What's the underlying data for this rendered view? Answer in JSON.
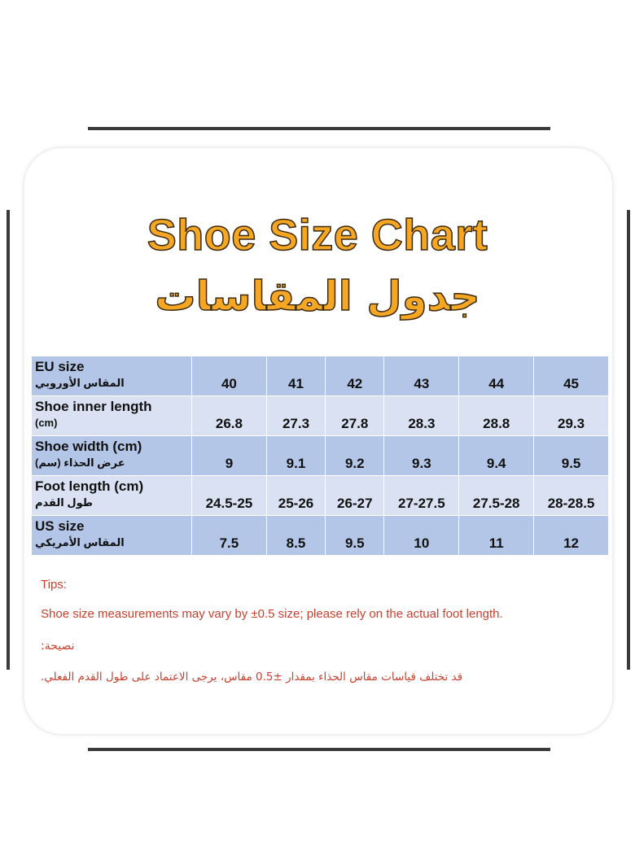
{
  "header": {
    "title": "Shoe Size Chart",
    "title_ar": "جدول المقاسات"
  },
  "table": {
    "rows": [
      {
        "label": [
          "EU size",
          "المقاس الأوروبي"
        ],
        "values": [
          "40",
          "41",
          "42",
          "43",
          "44",
          "45"
        ]
      },
      {
        "label": [
          "Shoe inner length",
          "(cm)"
        ],
        "values": [
          "26.8",
          "27.3",
          "27.8",
          "28.3",
          "28.8",
          "29.3"
        ]
      },
      {
        "label": [
          "Shoe width (cm)",
          "عرض الحذاء (سم)"
        ],
        "values": [
          "9",
          "9.1",
          "9.2",
          "9.3",
          "9.4",
          "9.5"
        ]
      },
      {
        "label": [
          "Foot length (cm)",
          "طول القدم"
        ],
        "values": [
          "24.5-25",
          "25-26",
          "26-27",
          "27-27.5",
          "27.5-28",
          "28-28.5"
        ]
      },
      {
        "label": [
          "US size",
          "المقاس الأمريكي"
        ],
        "values": [
          "7.5",
          "8.5",
          "9.5",
          "10",
          "11",
          "12"
        ]
      }
    ]
  },
  "tips": {
    "heading": "Tips:",
    "text": "Shoe size measurements may vary by ±0.5 size; please rely on the actual foot length.",
    "heading_ar": "نصيحة:",
    "text_ar": "قد تختلف قياسات مقاس الحذاء بمقدار ±0.5 مقاس، يرجى الاعتماد على طول القدم الفعلي."
  }
}
